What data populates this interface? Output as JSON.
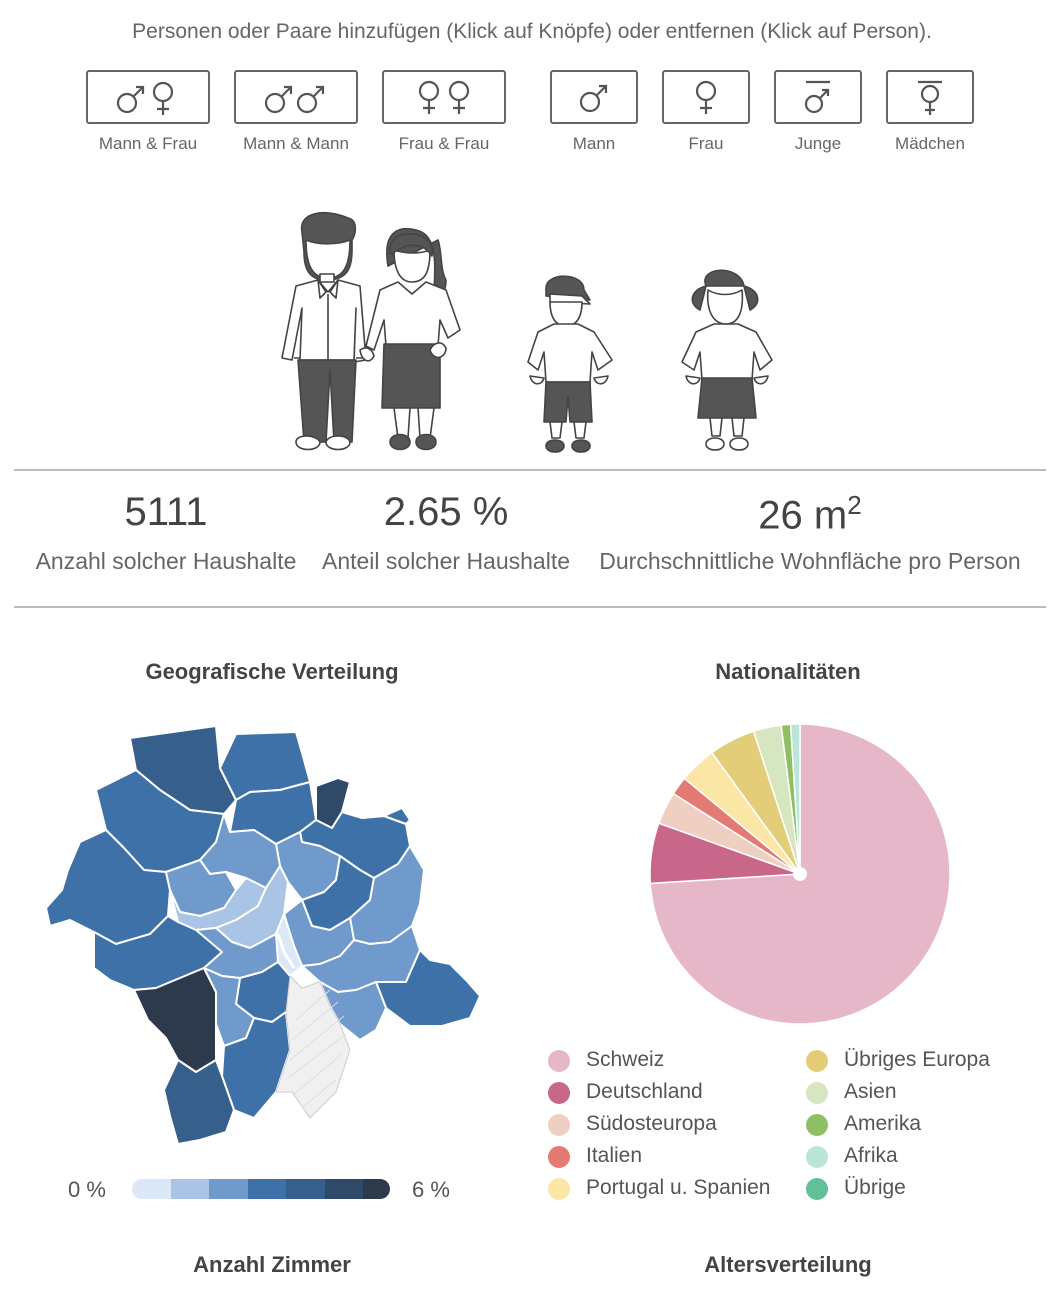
{
  "instruction": "Personen oder Paare hinzufügen (Klick auf Knöpfe) oder entfernen (Klick auf Person).",
  "buttons": [
    {
      "label": "Mann & Frau",
      "icon": "male-female-icon"
    },
    {
      "label": "Mann & Mann",
      "icon": "male-male-icon"
    },
    {
      "label": "Frau & Frau",
      "icon": "female-female-icon"
    },
    {
      "label": "Mann",
      "icon": "male-icon"
    },
    {
      "label": "Frau",
      "icon": "female-icon"
    },
    {
      "label": "Junge",
      "icon": "boy-icon"
    },
    {
      "label": "Mädchen",
      "icon": "girl-icon"
    }
  ],
  "household_members": [
    "man",
    "woman",
    "boy",
    "girl"
  ],
  "stats": {
    "count": {
      "value": "5111",
      "label": "Anzahl solcher Haushalte"
    },
    "share": {
      "value": "2.65 %",
      "label": "Anteil solcher Haushalte"
    },
    "area": {
      "value": "26 m",
      "sup": "2",
      "label": "Durchschnittliche Wohnfläche pro Person"
    }
  },
  "map": {
    "title": "Geografische Verteilung",
    "scale_min": "0 %",
    "scale_max": "6 %",
    "scale_colors": [
      "#dce8f7",
      "#a9c4e4",
      "#6f9acb",
      "#3f71a9",
      "#365f8c",
      "#2f4a68",
      "#2c3a4c"
    ]
  },
  "nationalities": {
    "title": "Nationalitäten",
    "legend": [
      {
        "label": "Schweiz",
        "color": "#e6b7c8"
      },
      {
        "label": "Deutschland",
        "color": "#c9678a"
      },
      {
        "label": "Südosteuropa",
        "color": "#f0cfc3"
      },
      {
        "label": "Italien",
        "color": "#e47a74"
      },
      {
        "label": "Portugal u. Spanien",
        "color": "#fbe6a6"
      },
      {
        "label": "Übriges Europa",
        "color": "#e3cd78"
      },
      {
        "label": "Asien",
        "color": "#d5e6c0"
      },
      {
        "label": "Amerika",
        "color": "#8fbf63"
      },
      {
        "label": "Afrika",
        "color": "#b9e6d8"
      },
      {
        "label": "Übrige",
        "color": "#5fc09a"
      }
    ]
  },
  "chart_data": {
    "type": "pie",
    "categories": [
      "Schweiz",
      "Deutschland",
      "Südosteuropa",
      "Italien",
      "Portugal u. Spanien",
      "Übriges Europa",
      "Asien",
      "Amerika",
      "Afrika",
      "Übrige"
    ],
    "values": [
      74.0,
      6.5,
      3.5,
      2.0,
      4.0,
      5.0,
      3.0,
      1.0,
      1.0,
      0.0
    ],
    "colors": [
      "#e6b7c8",
      "#c9678a",
      "#f0cfc3",
      "#e47a74",
      "#fbe6a6",
      "#e3cd78",
      "#d5e6c0",
      "#8fbf63",
      "#b9e6d8",
      "#5fc09a"
    ],
    "title": "Nationalitäten"
  },
  "bottom_titles": {
    "rooms": "Anzahl Zimmer",
    "age": "Altersverteilung"
  }
}
